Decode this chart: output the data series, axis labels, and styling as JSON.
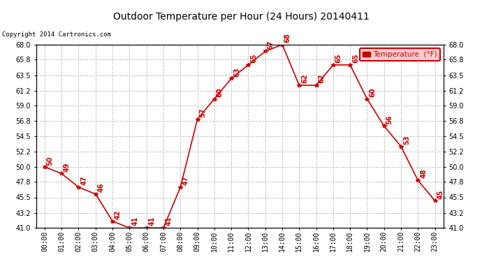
{
  "title": "Outdoor Temperature per Hour (24 Hours) 20140411",
  "copyright_text": "Copyright 2014 Cartronics.com",
  "legend_label": "Temperature  (°F)",
  "hours": [
    0,
    1,
    2,
    3,
    4,
    5,
    6,
    7,
    8,
    9,
    10,
    11,
    12,
    13,
    14,
    15,
    16,
    17,
    18,
    19,
    20,
    21,
    22,
    23
  ],
  "temps": [
    50,
    49,
    47,
    46,
    42,
    41,
    41,
    41,
    47,
    57,
    60,
    63,
    65,
    67,
    68,
    62,
    62,
    65,
    65,
    60,
    56,
    53,
    48,
    45
  ],
  "x_labels": [
    "00:00",
    "01:00",
    "02:00",
    "03:00",
    "04:00",
    "05:00",
    "06:00",
    "07:00",
    "08:00",
    "09:00",
    "10:00",
    "11:00",
    "12:00",
    "13:00",
    "14:00",
    "15:00",
    "16:00",
    "17:00",
    "18:00",
    "19:00",
    "20:00",
    "21:00",
    "22:00",
    "23:00"
  ],
  "y_ticks": [
    41.0,
    43.2,
    45.5,
    47.8,
    50.0,
    52.2,
    54.5,
    56.8,
    59.0,
    61.2,
    63.5,
    65.8,
    68.0
  ],
  "ylim": [
    41.0,
    68.0
  ],
  "line_color": "#cc0000",
  "marker": "*",
  "bg_color": "#ffffff",
  "grid_color": "#bbbbbb",
  "legend_bg": "#ffcccc",
  "legend_edge": "#cc0000"
}
